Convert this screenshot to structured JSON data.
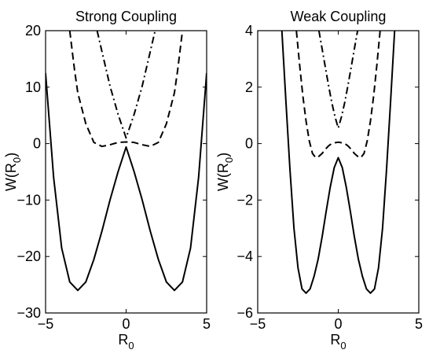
{
  "chart_data": [
    {
      "type": "line",
      "title": "Strong Coupling",
      "xlabel": "R",
      "xlabel_sub": "0",
      "ylabel": "W(R",
      "ylabel_sub": "0",
      "ylabel_close": ")",
      "xlim": [
        -5,
        5
      ],
      "ylim": [
        -30,
        20
      ],
      "xticks": [
        -5,
        0,
        5
      ],
      "xtick_labels": [
        "−5",
        "0",
        "5"
      ],
      "yticks": [
        -30,
        -20,
        -10,
        0,
        10,
        20
      ],
      "ytick_labels": [
        "−30",
        "−20",
        "−10",
        "0",
        "10",
        "20"
      ],
      "grid": false,
      "legend": "none",
      "series": [
        {
          "style": "solid",
          "color": "#000000",
          "x": [
            -5,
            -4.5,
            -4,
            -3.5,
            -3,
            -2.5,
            -2,
            -1.5,
            -1,
            -0.5,
            0,
            0.5,
            1,
            1.5,
            2,
            2.5,
            3,
            3.5,
            4,
            4.5,
            5
          ],
          "y": [
            12.5,
            -6,
            -18.5,
            -24.5,
            -26,
            -24.5,
            -20.5,
            -15.5,
            -10,
            -5,
            -0.6,
            -5,
            -10,
            -15.5,
            -20.5,
            -24.5,
            -26,
            -24.5,
            -18.5,
            -6,
            12.5
          ]
        },
        {
          "style": "dashed",
          "color": "#000000",
          "x": [
            -3.5,
            -3.2,
            -3,
            -2.5,
            -2,
            -1.5,
            -1,
            -0.5,
            0,
            0.5,
            1,
            1.5,
            2,
            2.5,
            3,
            3.2,
            3.5
          ],
          "y": [
            20,
            13,
            9,
            3.5,
            0.2,
            -0.5,
            -0.2,
            0.2,
            0.3,
            0.2,
            -0.2,
            -0.5,
            0.2,
            3.5,
            9,
            13,
            20
          ]
        },
        {
          "style": "dashdot",
          "color": "#000000",
          "x": [
            -1.8,
            -1.5,
            -1,
            -0.5,
            0,
            0.5,
            1,
            1.5,
            1.8
          ],
          "y": [
            20,
            16.3,
            10.2,
            5.2,
            1,
            5.2,
            10.2,
            16.3,
            20
          ]
        }
      ]
    },
    {
      "type": "line",
      "title": "Weak Coupling",
      "xlabel": "R",
      "xlabel_sub": "0",
      "ylabel": "W(R",
      "ylabel_sub": "0",
      "ylabel_close": ")",
      "xlim": [
        -5,
        5
      ],
      "ylim": [
        -6,
        4
      ],
      "xticks": [
        -5,
        0,
        5
      ],
      "xtick_labels": [
        "−5",
        "0",
        "5"
      ],
      "yticks": [
        -6,
        -4,
        -2,
        0,
        2,
        4
      ],
      "ytick_labels": [
        "−6",
        "−4",
        "−2",
        "0",
        "2",
        "4"
      ],
      "grid": false,
      "legend": "none",
      "series": [
        {
          "style": "solid",
          "color": "#000000",
          "x": [
            -3.5,
            -3.25,
            -3,
            -2.75,
            -2.5,
            -2.25,
            -2,
            -1.75,
            -1.5,
            -1.25,
            -1,
            -0.75,
            -0.5,
            -0.25,
            0,
            0.25,
            0.5,
            0.75,
            1,
            1.25,
            1.5,
            1.75,
            2,
            2.25,
            2.5,
            2.75,
            3,
            3.25,
            3.5
          ],
          "y": [
            4,
            1.5,
            -0.9,
            -3,
            -4.4,
            -5.15,
            -5.3,
            -5.15,
            -4.7,
            -4.1,
            -3.3,
            -2.4,
            -1.55,
            -0.85,
            -0.5,
            -0.85,
            -1.55,
            -2.4,
            -3.3,
            -4.1,
            -4.7,
            -5.15,
            -5.3,
            -5.15,
            -4.4,
            -3,
            -0.9,
            1.5,
            4
          ]
        },
        {
          "style": "dashed",
          "color": "#000000",
          "x": [
            -2.6,
            -2.4,
            -2.2,
            -2,
            -1.8,
            -1.6,
            -1.4,
            -1.2,
            -1,
            -0.8,
            -0.6,
            -0.4,
            -0.2,
            0,
            0.2,
            0.4,
            0.6,
            0.8,
            1,
            1.2,
            1.4,
            1.6,
            1.8,
            2,
            2.2,
            2.4,
            2.6
          ],
          "y": [
            4,
            2.8,
            1.7,
            0.8,
            0.1,
            -0.35,
            -0.5,
            -0.45,
            -0.35,
            -0.2,
            -0.08,
            0,
            0.03,
            0.05,
            0.03,
            0,
            -0.08,
            -0.2,
            -0.35,
            -0.45,
            -0.5,
            -0.35,
            0.1,
            0.8,
            1.7,
            2.8,
            4
          ]
        },
        {
          "style": "dashdot",
          "color": "#000000",
          "x": [
            -1.2,
            -1,
            -0.8,
            -0.6,
            -0.4,
            -0.2,
            0,
            0.2,
            0.4,
            0.6,
            0.8,
            1,
            1.2
          ],
          "y": [
            4,
            3.35,
            2.7,
            2.05,
            1.45,
            0.95,
            0.55,
            0.95,
            1.45,
            2.05,
            2.7,
            3.35,
            4
          ]
        }
      ]
    }
  ]
}
